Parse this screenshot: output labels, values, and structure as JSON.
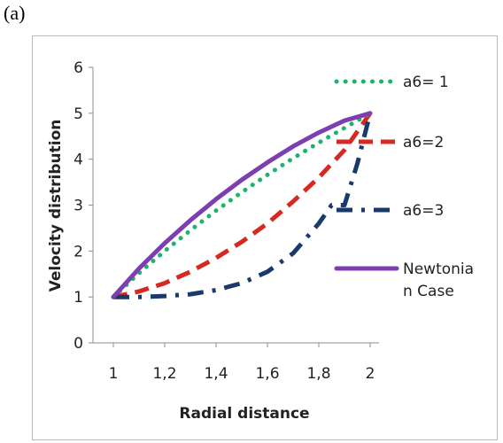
{
  "panel_label": "(a)",
  "chart_data": {
    "type": "line",
    "xlabel": "Radial distance",
    "ylabel": "Velocity distribution",
    "xlim": [
      1,
      2
    ],
    "ylim": [
      0,
      6
    ],
    "x_ticks": [
      "1",
      "1,2",
      "1,4",
      "1,6",
      "1,8",
      "2"
    ],
    "y_ticks": [
      "0",
      "1",
      "2",
      "3",
      "4",
      "5",
      "6"
    ],
    "grid": false,
    "legend_position": "right",
    "series": [
      {
        "name": "a6= 1",
        "color": "#1fb26b",
        "style": "dotted",
        "x": [
          1,
          1.1,
          1.2,
          1.3,
          1.4,
          1.5,
          1.6,
          1.7,
          1.8,
          1.9,
          2
        ],
        "y": [
          1,
          1.52,
          2.0,
          2.45,
          2.88,
          3.28,
          3.66,
          4.02,
          4.36,
          4.68,
          5.0
        ]
      },
      {
        "name": "a6=2",
        "color": "#d42a22",
        "style": "dashed",
        "x": [
          1,
          1.1,
          1.2,
          1.3,
          1.4,
          1.5,
          1.6,
          1.7,
          1.8,
          1.9,
          2
        ],
        "y": [
          1,
          1.12,
          1.3,
          1.55,
          1.85,
          2.2,
          2.6,
          3.08,
          3.6,
          4.2,
          5.0
        ]
      },
      {
        "name": "a6=3",
        "color": "#1a3a6b",
        "style": "dashdot",
        "x": [
          1,
          1.1,
          1.2,
          1.3,
          1.4,
          1.5,
          1.6,
          1.7,
          1.8,
          1.85,
          1.9,
          1.95,
          2
        ],
        "y": [
          1,
          1.0,
          1.02,
          1.06,
          1.15,
          1.3,
          1.55,
          1.95,
          2.6,
          3.0,
          3.0,
          3.9,
          5.0
        ]
      },
      {
        "name": "Newtonia n Case",
        "name_lines": [
          "Newtonia",
          "n Case"
        ],
        "color": "#7b3fb0",
        "style": "solid",
        "x": [
          1,
          1.1,
          1.2,
          1.3,
          1.4,
          1.5,
          1.6,
          1.7,
          1.8,
          1.9,
          2
        ],
        "y": [
          1,
          1.62,
          2.17,
          2.67,
          3.13,
          3.55,
          3.93,
          4.28,
          4.58,
          4.84,
          5.0
        ]
      }
    ]
  }
}
